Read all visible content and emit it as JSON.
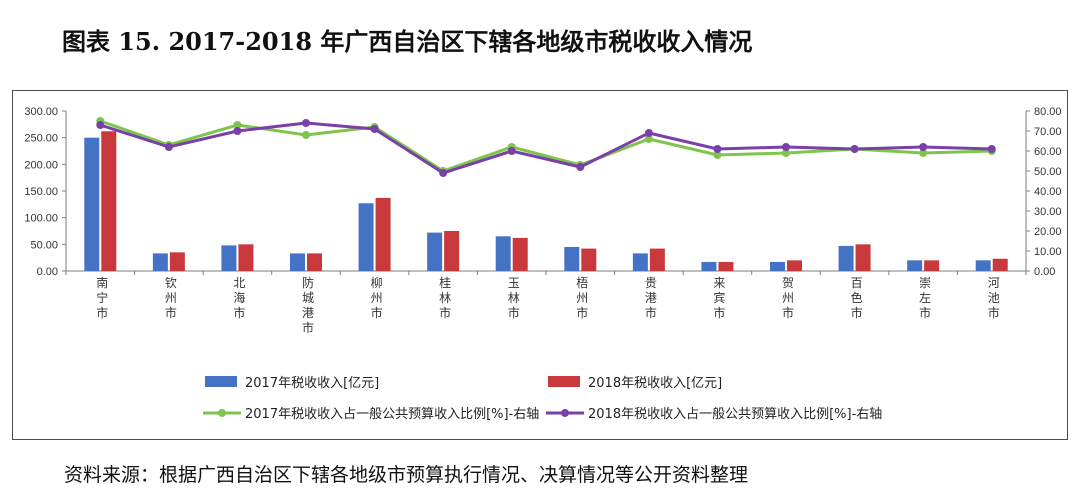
{
  "title": "图表 15.   2017-2018 年广西自治区下辖各地级市税收收入情况",
  "source": "资料来源：根据广西自治区下辖各地级市预算执行情况、决算情况等公开资料整理",
  "colors": {
    "bar2017": "#4472c4",
    "bar2018": "#c9383b",
    "line2017": "#7dc54c",
    "line2018": "#7a3fa8"
  },
  "chart_data": {
    "type": "bar",
    "categories": [
      "南宁市",
      "钦州市",
      "北海市",
      "防城港市",
      "柳州市",
      "桂林市",
      "玉林市",
      "梧州市",
      "贵港市",
      "来宾市",
      "贺州市",
      "百色市",
      "崇左市",
      "河池市"
    ],
    "left_axis": {
      "ylim": [
        0,
        300
      ],
      "ticks": [
        "0.00",
        "50.00",
        "100.00",
        "150.00",
        "200.00",
        "250.00",
        "300.00"
      ]
    },
    "right_axis": {
      "ylim": [
        0,
        80
      ],
      "ticks": [
        "0.00",
        "10.00",
        "20.00",
        "30.00",
        "40.00",
        "50.00",
        "60.00",
        "70.00",
        "80.00"
      ]
    },
    "series": [
      {
        "name": "2017年税收收入[亿元]",
        "type": "bar",
        "axis": "left",
        "values": [
          250,
          33,
          48,
          33,
          127,
          72,
          65,
          45,
          33,
          17,
          17,
          47,
          20,
          20
        ]
      },
      {
        "name": "2018年税收收入[亿元]",
        "type": "bar",
        "axis": "left",
        "values": [
          262,
          35,
          50,
          33,
          137,
          75,
          62,
          42,
          42,
          17,
          20,
          50,
          20,
          23
        ]
      },
      {
        "name": "2017年税收收入占一般公共预算收入比例[%]-右轴",
        "type": "line",
        "axis": "right",
        "values": [
          75,
          63,
          73,
          68,
          72,
          50,
          62,
          53,
          66,
          58,
          59,
          61,
          59,
          60
        ]
      },
      {
        "name": "2018年税收收入占一般公共预算收入比例[%]-右轴",
        "type": "line",
        "axis": "right",
        "values": [
          73,
          62,
          70,
          74,
          71,
          49,
          60,
          52,
          69,
          61,
          62,
          61,
          62,
          61
        ]
      }
    ],
    "legend_position": "bottom",
    "grid": false
  }
}
